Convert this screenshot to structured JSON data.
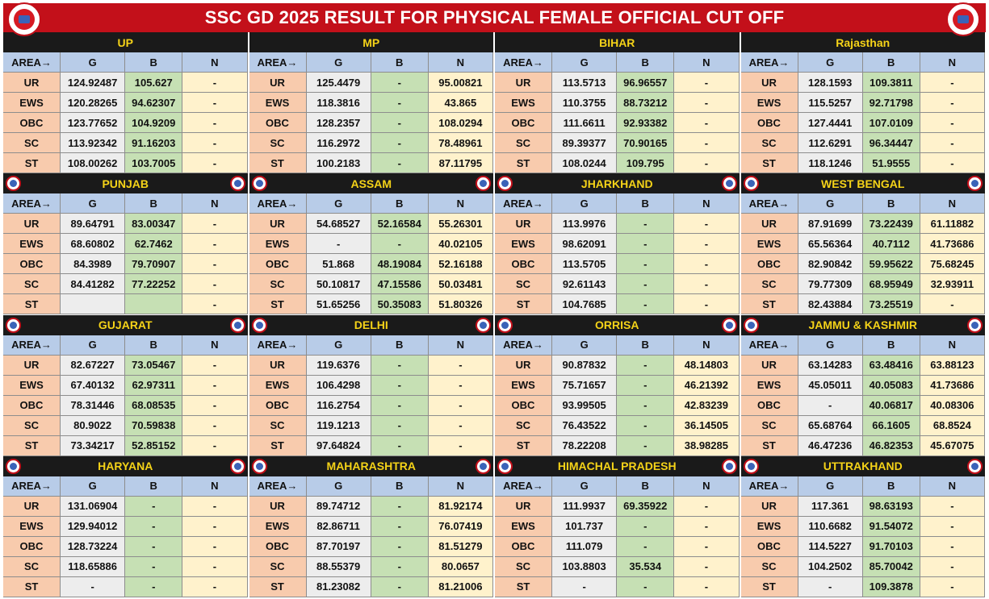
{
  "title": "SSC GD 2025 RESULT FOR PHYSICAL FEMALE OFFICIAL CUT OFF",
  "logo_icon": "rojgar-ankit-logo-icon",
  "column_headers": [
    "AREA→",
    "G",
    "B",
    "N"
  ],
  "colors": {
    "title_bar": "#c3101a",
    "title_text": "#ffffff",
    "state_header_bg": "#1a1a1a",
    "state_header_text": "#f5d318",
    "header_row": "#b8cce8",
    "category": "#f8cbad",
    "g_column": "#ededed",
    "b_column": "#c6e0b4",
    "n_column": "#fff2cc"
  },
  "states": [
    {
      "name": "UP",
      "rows": [
        [
          "UR",
          "124.92487",
          "105.627",
          "-"
        ],
        [
          "EWS",
          "120.28265",
          "94.62307",
          "-"
        ],
        [
          "OBC",
          "123.77652",
          "104.9209",
          "-"
        ],
        [
          "SC",
          "113.92342",
          "91.16203",
          "-"
        ],
        [
          "ST",
          "108.00262",
          "103.7005",
          "-"
        ]
      ]
    },
    {
      "name": "MP",
      "rows": [
        [
          "UR",
          "125.4479",
          "-",
          "95.00821"
        ],
        [
          "EWS",
          "118.3816",
          "-",
          "43.865"
        ],
        [
          "OBC",
          "128.2357",
          "-",
          "108.0294"
        ],
        [
          "SC",
          "116.2972",
          "-",
          "78.48961"
        ],
        [
          "ST",
          "100.2183",
          "-",
          "87.11795"
        ]
      ]
    },
    {
      "name": "BIHAR",
      "rows": [
        [
          "UR",
          "113.5713",
          "96.96557",
          "-"
        ],
        [
          "EWS",
          "110.3755",
          "88.73212",
          "-"
        ],
        [
          "OBC",
          "111.6611",
          "92.93382",
          "-"
        ],
        [
          "SC",
          "89.39377",
          "70.90165",
          "-"
        ],
        [
          "ST",
          "108.0244",
          "109.795",
          "-"
        ]
      ]
    },
    {
      "name": "Rajasthan",
      "rows": [
        [
          "UR",
          "128.1593",
          "109.3811",
          "-"
        ],
        [
          "EWS",
          "115.5257",
          "92.71798",
          "-"
        ],
        [
          "OBC",
          "127.4441",
          "107.0109",
          "-"
        ],
        [
          "SC",
          "112.6291",
          "96.34447",
          "-"
        ],
        [
          "ST",
          "118.1246",
          "51.9555",
          "-"
        ]
      ]
    },
    {
      "name": "PUNJAB",
      "rows": [
        [
          "UR",
          "89.64791",
          "83.00347",
          "-"
        ],
        [
          "EWS",
          "68.60802",
          "62.7462",
          "-"
        ],
        [
          "OBC",
          "84.3989",
          "79.70907",
          "-"
        ],
        [
          "SC",
          "84.41282",
          "77.22252",
          "-"
        ],
        [
          "ST",
          "",
          "",
          "-"
        ]
      ]
    },
    {
      "name": "ASSAM",
      "rows": [
        [
          "UR",
          "54.68527",
          "52.16584",
          "55.26301"
        ],
        [
          "EWS",
          "-",
          "-",
          "40.02105"
        ],
        [
          "OBC",
          "51.868",
          "48.19084",
          "52.16188"
        ],
        [
          "SC",
          "50.10817",
          "47.15586",
          "50.03481"
        ],
        [
          "ST",
          "51.65256",
          "50.35083",
          "51.80326"
        ]
      ]
    },
    {
      "name": "JHARKHAND",
      "rows": [
        [
          "UR",
          "113.9976",
          "-",
          "-"
        ],
        [
          "EWS",
          "98.62091",
          "-",
          "-"
        ],
        [
          "OBC",
          "113.5705",
          "-",
          "-"
        ],
        [
          "SC",
          "92.61143",
          "-",
          "-"
        ],
        [
          "ST",
          "104.7685",
          "-",
          "-"
        ]
      ]
    },
    {
      "name": "WEST BENGAL",
      "rows": [
        [
          "UR",
          "87.91699",
          "73.22439",
          "61.11882"
        ],
        [
          "EWS",
          "65.56364",
          "40.7112",
          "41.73686"
        ],
        [
          "OBC",
          "82.90842",
          "59.95622",
          "75.68245"
        ],
        [
          "SC",
          "79.77309",
          "68.95949",
          "32.93911"
        ],
        [
          "ST",
          "82.43884",
          "73.25519",
          "-"
        ]
      ]
    },
    {
      "name": "GUJARAT",
      "rows": [
        [
          "UR",
          "82.67227",
          "73.05467",
          "-"
        ],
        [
          "EWS",
          "67.40132",
          "62.97311",
          "-"
        ],
        [
          "OBC",
          "78.31446",
          "68.08535",
          "-"
        ],
        [
          "SC",
          "80.9022",
          "70.59838",
          "-"
        ],
        [
          "ST",
          "73.34217",
          "52.85152",
          "-"
        ]
      ]
    },
    {
      "name": "DELHI",
      "rows": [
        [
          "UR",
          "119.6376",
          "-",
          "-"
        ],
        [
          "EWS",
          "106.4298",
          "-",
          "-"
        ],
        [
          "OBC",
          "116.2754",
          "-",
          "-"
        ],
        [
          "SC",
          "119.1213",
          "-",
          "-"
        ],
        [
          "ST",
          "97.64824",
          "-",
          "-"
        ]
      ]
    },
    {
      "name": "ORRISA",
      "rows": [
        [
          "UR",
          "90.87832",
          "-",
          "48.14803"
        ],
        [
          "EWS",
          "75.71657",
          "-",
          "46.21392"
        ],
        [
          "OBC",
          "93.99505",
          "-",
          "42.83239"
        ],
        [
          "SC",
          "76.43522",
          "-",
          "36.14505"
        ],
        [
          "ST",
          "78.22208",
          "-",
          "38.98285"
        ]
      ]
    },
    {
      "name": "JAMMU & KASHMIR",
      "rows": [
        [
          "UR",
          "63.14283",
          "63.48416",
          "63.88123"
        ],
        [
          "EWS",
          "45.05011",
          "40.05083",
          "41.73686"
        ],
        [
          "OBC",
          "-",
          "40.06817",
          "40.08306"
        ],
        [
          "SC",
          "65.68764",
          "66.1605",
          "68.8524"
        ],
        [
          "ST",
          "46.47236",
          "46.82353",
          "45.67075"
        ]
      ]
    },
    {
      "name": "HARYANA",
      "rows": [
        [
          "UR",
          "131.06904",
          "-",
          "-"
        ],
        [
          "EWS",
          "129.94012",
          "-",
          "-"
        ],
        [
          "OBC",
          "128.73224",
          "-",
          "-"
        ],
        [
          "SC",
          "118.65886",
          "-",
          "-"
        ],
        [
          "ST",
          "-",
          "-",
          "-"
        ]
      ]
    },
    {
      "name": "MAHARASHTRA",
      "rows": [
        [
          "UR",
          "89.74712",
          "-",
          "81.92174"
        ],
        [
          "EWS",
          "82.86711",
          "-",
          "76.07419"
        ],
        [
          "OBC",
          "87.70197",
          "-",
          "81.51279"
        ],
        [
          "SC",
          "88.55379",
          "-",
          "80.0657"
        ],
        [
          "ST",
          "81.23082",
          "-",
          "81.21006"
        ]
      ]
    },
    {
      "name": "HIMACHAL PRADESH",
      "rows": [
        [
          "UR",
          "111.9937",
          "69.35922",
          "-"
        ],
        [
          "EWS",
          "101.737",
          "-",
          "-"
        ],
        [
          "OBC",
          "111.079",
          "-",
          "-"
        ],
        [
          "SC",
          "103.8803",
          "35.534",
          "-"
        ],
        [
          "ST",
          "-",
          "-",
          "-"
        ]
      ]
    },
    {
      "name": "UTTRAKHAND",
      "rows": [
        [
          "UR",
          "117.361",
          "98.63193",
          "-"
        ],
        [
          "EWS",
          "110.6682",
          "91.54072",
          "-"
        ],
        [
          "OBC",
          "114.5227",
          "91.70103",
          "-"
        ],
        [
          "SC",
          "104.2502",
          "85.70042",
          "-"
        ],
        [
          "ST",
          "-",
          "109.3878",
          "-"
        ]
      ]
    }
  ]
}
